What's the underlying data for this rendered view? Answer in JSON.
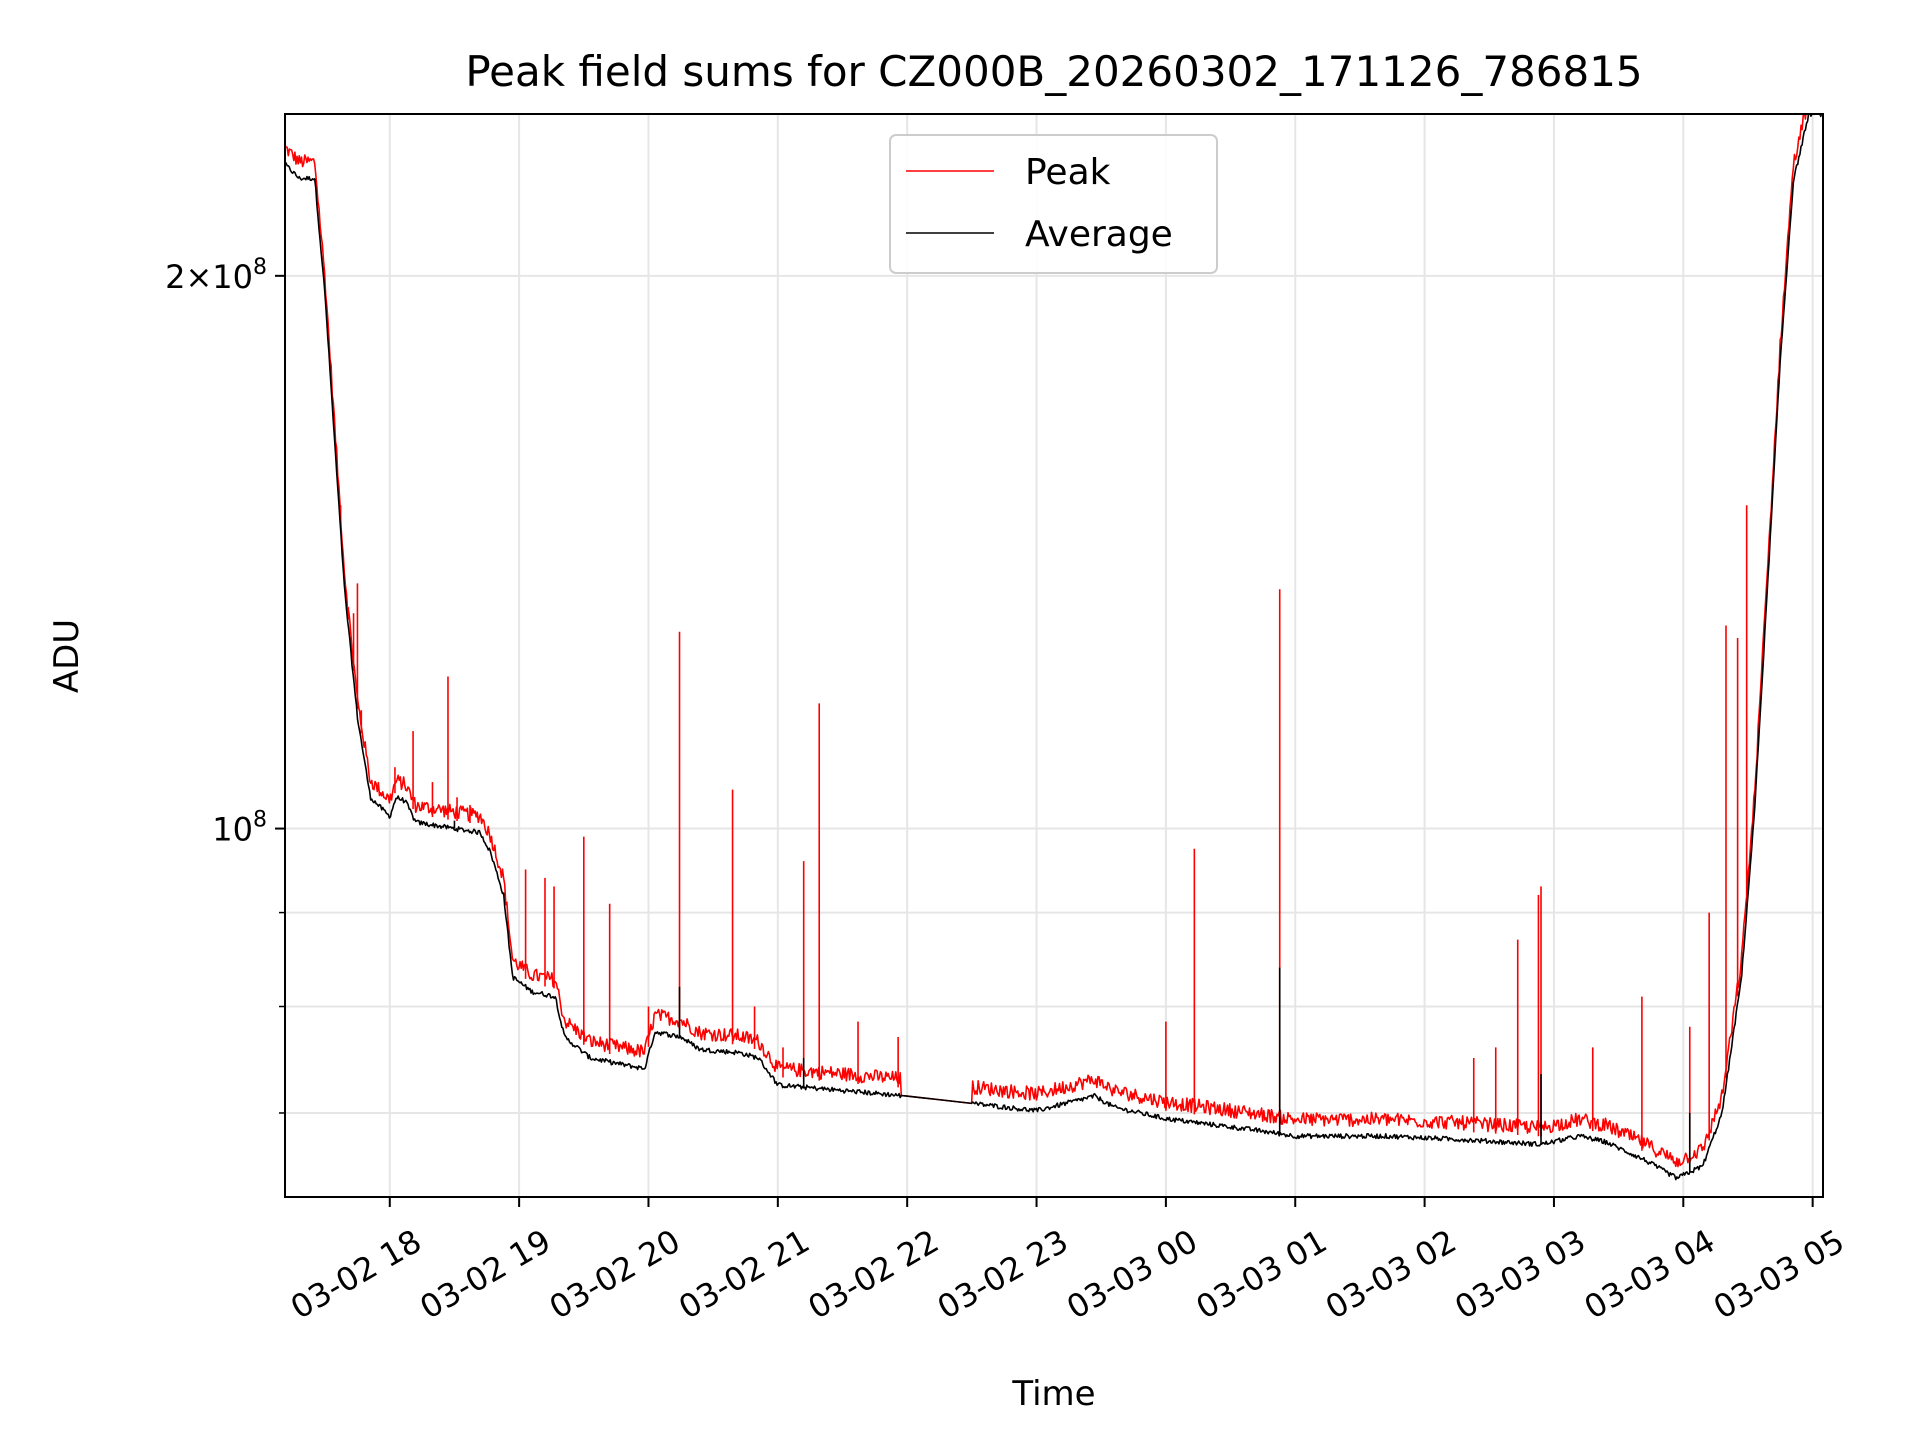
{
  "chart_data": {
    "type": "line",
    "title": "Peak field sums for CZ000B_20260302_171126_786815",
    "xlabel": "Time",
    "ylabel": "ADU",
    "yscale": "log",
    "ylim": [
      63000000,
      245000000
    ],
    "xlim_hours": [
      17.19,
      29.08
    ],
    "grid": true,
    "legend_position": "upper-center",
    "x_ticks": [
      {
        "label": "03-02 18",
        "hour": 18
      },
      {
        "label": "03-02 19",
        "hour": 19
      },
      {
        "label": "03-02 20",
        "hour": 20
      },
      {
        "label": "03-02 21",
        "hour": 21
      },
      {
        "label": "03-02 22",
        "hour": 22
      },
      {
        "label": "03-02 23",
        "hour": 23
      },
      {
        "label": "03-03 00",
        "hour": 24
      },
      {
        "label": "03-03 01",
        "hour": 25
      },
      {
        "label": "03-03 02",
        "hour": 26
      },
      {
        "label": "03-03 03",
        "hour": 27
      },
      {
        "label": "03-03 04",
        "hour": 28
      },
      {
        "label": "03-03 05",
        "hour": 29
      }
    ],
    "y_ticks": [
      {
        "base": "2×10",
        "exp": "8",
        "value": 200000000
      },
      {
        "base": "10",
        "exp": "8",
        "value": 100000000
      }
    ],
    "y_minor_gridlines": [
      70000000,
      80000000,
      90000000
    ],
    "series": [
      {
        "name": "Peak",
        "color": "#ff0000",
        "baseline_offset": 1.012,
        "spikes": [
          [
            17.62,
            150000000
          ],
          [
            17.68,
            132000000
          ],
          [
            17.72,
            131000000
          ],
          [
            17.75,
            136000000
          ],
          [
            17.78,
            116000000
          ],
          [
            18.04,
            108000000
          ],
          [
            18.18,
            113000000
          ],
          [
            18.33,
            106000000
          ],
          [
            18.45,
            121000000
          ],
          [
            18.52,
            104000000
          ],
          [
            18.62,
            103000000
          ],
          [
            19.05,
            95000000
          ],
          [
            19.2,
            94000000
          ],
          [
            19.27,
            93000000
          ],
          [
            19.5,
            99000000
          ],
          [
            19.7,
            91000000
          ],
          [
            20.0,
            80000000
          ],
          [
            20.24,
            128000000
          ],
          [
            20.65,
            105000000
          ],
          [
            20.82,
            80000000
          ],
          [
            21.04,
            76000000
          ],
          [
            21.2,
            96000000
          ],
          [
            21.32,
            117000000
          ],
          [
            21.62,
            78500000
          ],
          [
            21.93,
            77000000
          ],
          [
            24.0,
            78500000
          ],
          [
            24.22,
            97500000
          ],
          [
            24.88,
            135000000
          ],
          [
            26.38,
            75000000
          ],
          [
            26.55,
            76000000
          ],
          [
            26.72,
            87000000
          ],
          [
            26.88,
            92000000
          ],
          [
            26.9,
            93000000
          ],
          [
            27.3,
            76000000
          ],
          [
            27.68,
            81000000
          ],
          [
            28.05,
            78000000
          ],
          [
            28.2,
            90000000
          ],
          [
            28.33,
            129000000
          ],
          [
            28.42,
            127000000
          ],
          [
            28.49,
            150000000
          ]
        ]
      },
      {
        "name": "Average",
        "color": "#000000",
        "baseline": [
          [
            17.19,
            230000000
          ],
          [
            17.3,
            226000000
          ],
          [
            17.42,
            226000000
          ],
          [
            17.5,
            195000000
          ],
          [
            17.58,
            160000000
          ],
          [
            17.65,
            135000000
          ],
          [
            17.75,
            115000000
          ],
          [
            17.85,
            104000000
          ],
          [
            18.0,
            101500000
          ],
          [
            18.05,
            104000000
          ],
          [
            18.12,
            103500000
          ],
          [
            18.2,
            100800000
          ],
          [
            18.5,
            100000000
          ],
          [
            18.7,
            99500000
          ],
          [
            18.78,
            97000000
          ],
          [
            18.88,
            92000000
          ],
          [
            18.95,
            83000000
          ],
          [
            19.1,
            81500000
          ],
          [
            19.28,
            81000000
          ],
          [
            19.35,
            77000000
          ],
          [
            19.55,
            75000000
          ],
          [
            19.75,
            74500000
          ],
          [
            19.97,
            74000000
          ],
          [
            20.05,
            77500000
          ],
          [
            20.25,
            77000000
          ],
          [
            20.4,
            75800000
          ],
          [
            20.7,
            75500000
          ],
          [
            20.85,
            75000000
          ],
          [
            21.0,
            72500000
          ],
          [
            21.5,
            72000000
          ],
          [
            22.0,
            71500000
          ],
          [
            23.0,
            70200000
          ],
          [
            23.45,
            71500000
          ],
          [
            23.6,
            70500000
          ],
          [
            24.0,
            69500000
          ],
          [
            24.7,
            68500000
          ],
          [
            25.0,
            68000000
          ],
          [
            25.7,
            68000000
          ],
          [
            26.3,
            67700000
          ],
          [
            26.9,
            67300000
          ],
          [
            27.2,
            68000000
          ],
          [
            27.4,
            67500000
          ],
          [
            27.7,
            66000000
          ],
          [
            27.95,
            64500000
          ],
          [
            28.15,
            65500000
          ],
          [
            28.3,
            70000000
          ],
          [
            28.45,
            83000000
          ],
          [
            28.55,
            102000000
          ],
          [
            28.65,
            135000000
          ],
          [
            28.75,
            180000000
          ],
          [
            28.85,
            225000000
          ],
          [
            28.97,
            245000000
          ],
          [
            29.08,
            245000000
          ]
        ],
        "spikes": [
          [
            18.5,
            101000000
          ],
          [
            20.24,
            82000000
          ],
          [
            21.2,
            75000000
          ],
          [
            24.88,
            84000000
          ],
          [
            26.9,
            73500000
          ],
          [
            28.05,
            70000000
          ]
        ]
      }
    ]
  }
}
